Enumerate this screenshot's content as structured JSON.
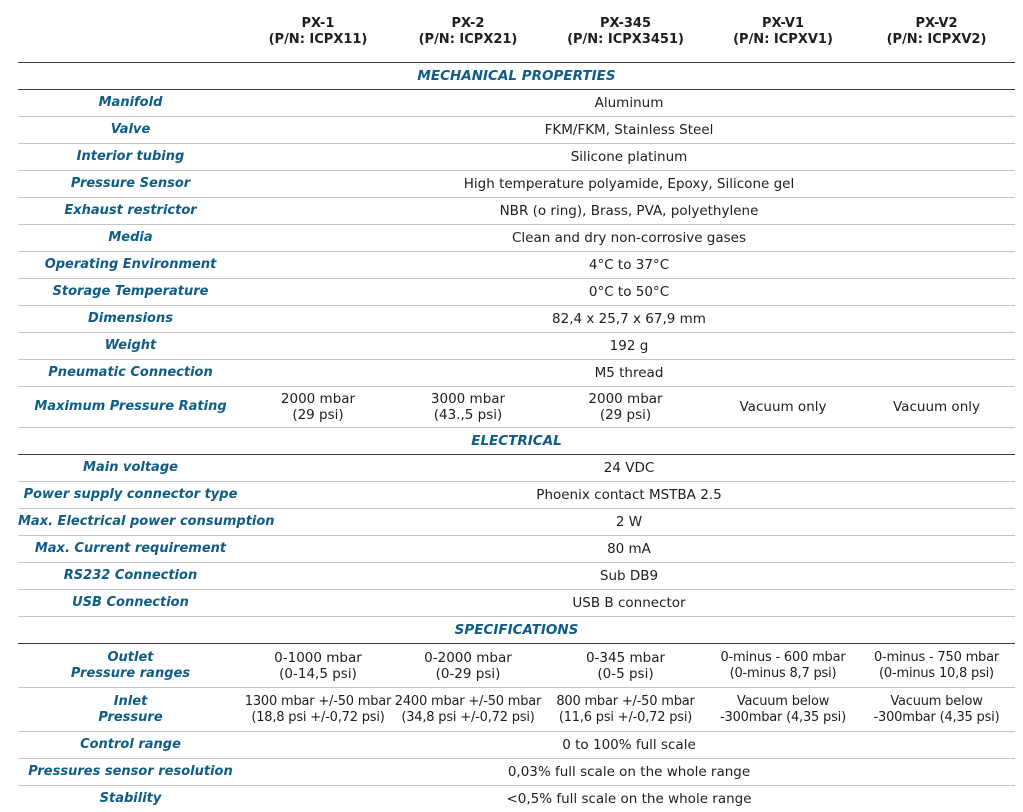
{
  "header": {
    "models": [
      {
        "name": "PX-1",
        "pn": "(P/N: ICPX11)"
      },
      {
        "name": "PX-2",
        "pn": "(P/N: ICPX21)"
      },
      {
        "name": "PX-345",
        "pn": "(P/N: ICPX3451)"
      },
      {
        "name": "PX-V1",
        "pn": "(P/N: ICPXV1)"
      },
      {
        "name": "PX-V2",
        "pn": "(P/N: ICPXV2)"
      }
    ]
  },
  "mechanical": {
    "title": "MECHANICAL PROPERTIES",
    "rows": [
      {
        "label": "Manifold",
        "value": "Aluminum"
      },
      {
        "label": "Valve",
        "value": "FKM/FKM, Stainless Steel"
      },
      {
        "label": "Interior tubing",
        "value": "Silicone platinum"
      },
      {
        "label": "Pressure Sensor",
        "value": "High temperature polyamide, Epoxy, Silicone gel"
      },
      {
        "label": "Exhaust restrictor",
        "value": "NBR (o ring), Brass, PVA, polyethylene"
      },
      {
        "label": "Media",
        "value": "Clean and dry non-corrosive gases"
      },
      {
        "label": "Operating Environment",
        "value": "4°C to 37°C"
      },
      {
        "label": "Storage Temperature",
        "value": "0°C to 50°C"
      },
      {
        "label": "Dimensions",
        "value": "82,4 x 25,7 x 67,9 mm"
      },
      {
        "label": "Weight",
        "value": "192 g"
      },
      {
        "label": "Pneumatic Connection",
        "value": "M5 thread"
      }
    ],
    "max_pressure": {
      "label": "Maximum Pressure Rating",
      "values": [
        [
          "2000 mbar",
          "(29 psi)"
        ],
        [
          "3000 mbar",
          "(43.,5 psi)"
        ],
        [
          "2000 mbar",
          "(29 psi)"
        ],
        [
          "Vacuum only",
          ""
        ],
        [
          "Vacuum only",
          ""
        ]
      ]
    }
  },
  "electrical": {
    "title": "ELECTRICAL",
    "rows": [
      {
        "label": "Main voltage",
        "value": "24 VDC"
      },
      {
        "label": "Power supply connector type",
        "value": "Phoenix contact MSTBA 2.5"
      },
      {
        "label": "Max. Electrical power consumption",
        "value": "2 W"
      },
      {
        "label": "Max. Current requirement",
        "value": "80 mA"
      },
      {
        "label": "RS232 Connection",
        "value": "Sub DB9"
      },
      {
        "label": "USB Connection",
        "value": "USB B connector"
      }
    ]
  },
  "specifications": {
    "title": "SPECIFICATIONS",
    "outlet": {
      "label": [
        "Outlet",
        "Pressure ranges"
      ],
      "values": [
        [
          "0-1000 mbar",
          "(0-14,5 psi)"
        ],
        [
          "0-2000 mbar",
          "(0-29 psi)"
        ],
        [
          "0-345 mbar",
          "(0-5 psi)"
        ],
        [
          "0-minus - 600 mbar",
          "(0-minus 8,7 psi)"
        ],
        [
          "0-minus - 750 mbar",
          "(0-minus 10,8 psi)"
        ]
      ]
    },
    "inlet": {
      "label": [
        "Inlet",
        "Pressure"
      ],
      "values": [
        [
          "1300 mbar +/-50 mbar",
          "(18,8 psi +/-0,72 psi)"
        ],
        [
          "2400 mbar +/-50 mbar",
          "(34,8 psi +/-0,72 psi)"
        ],
        [
          "800 mbar +/-50 mbar",
          "(11,6 psi +/-0,72 psi)"
        ],
        [
          "Vacuum below",
          "-300mbar (4,35 psi)"
        ],
        [
          "Vacuum below",
          "-300mbar (4,35 psi)"
        ]
      ]
    },
    "rows": [
      {
        "label": "Control range",
        "value": "0 to 100% full scale"
      },
      {
        "label": "Pressures sensor resolution",
        "value": "0,03% full scale on the whole range"
      },
      {
        "label": "Stability",
        "value": "<0,5% full scale on the whole range"
      }
    ]
  }
}
